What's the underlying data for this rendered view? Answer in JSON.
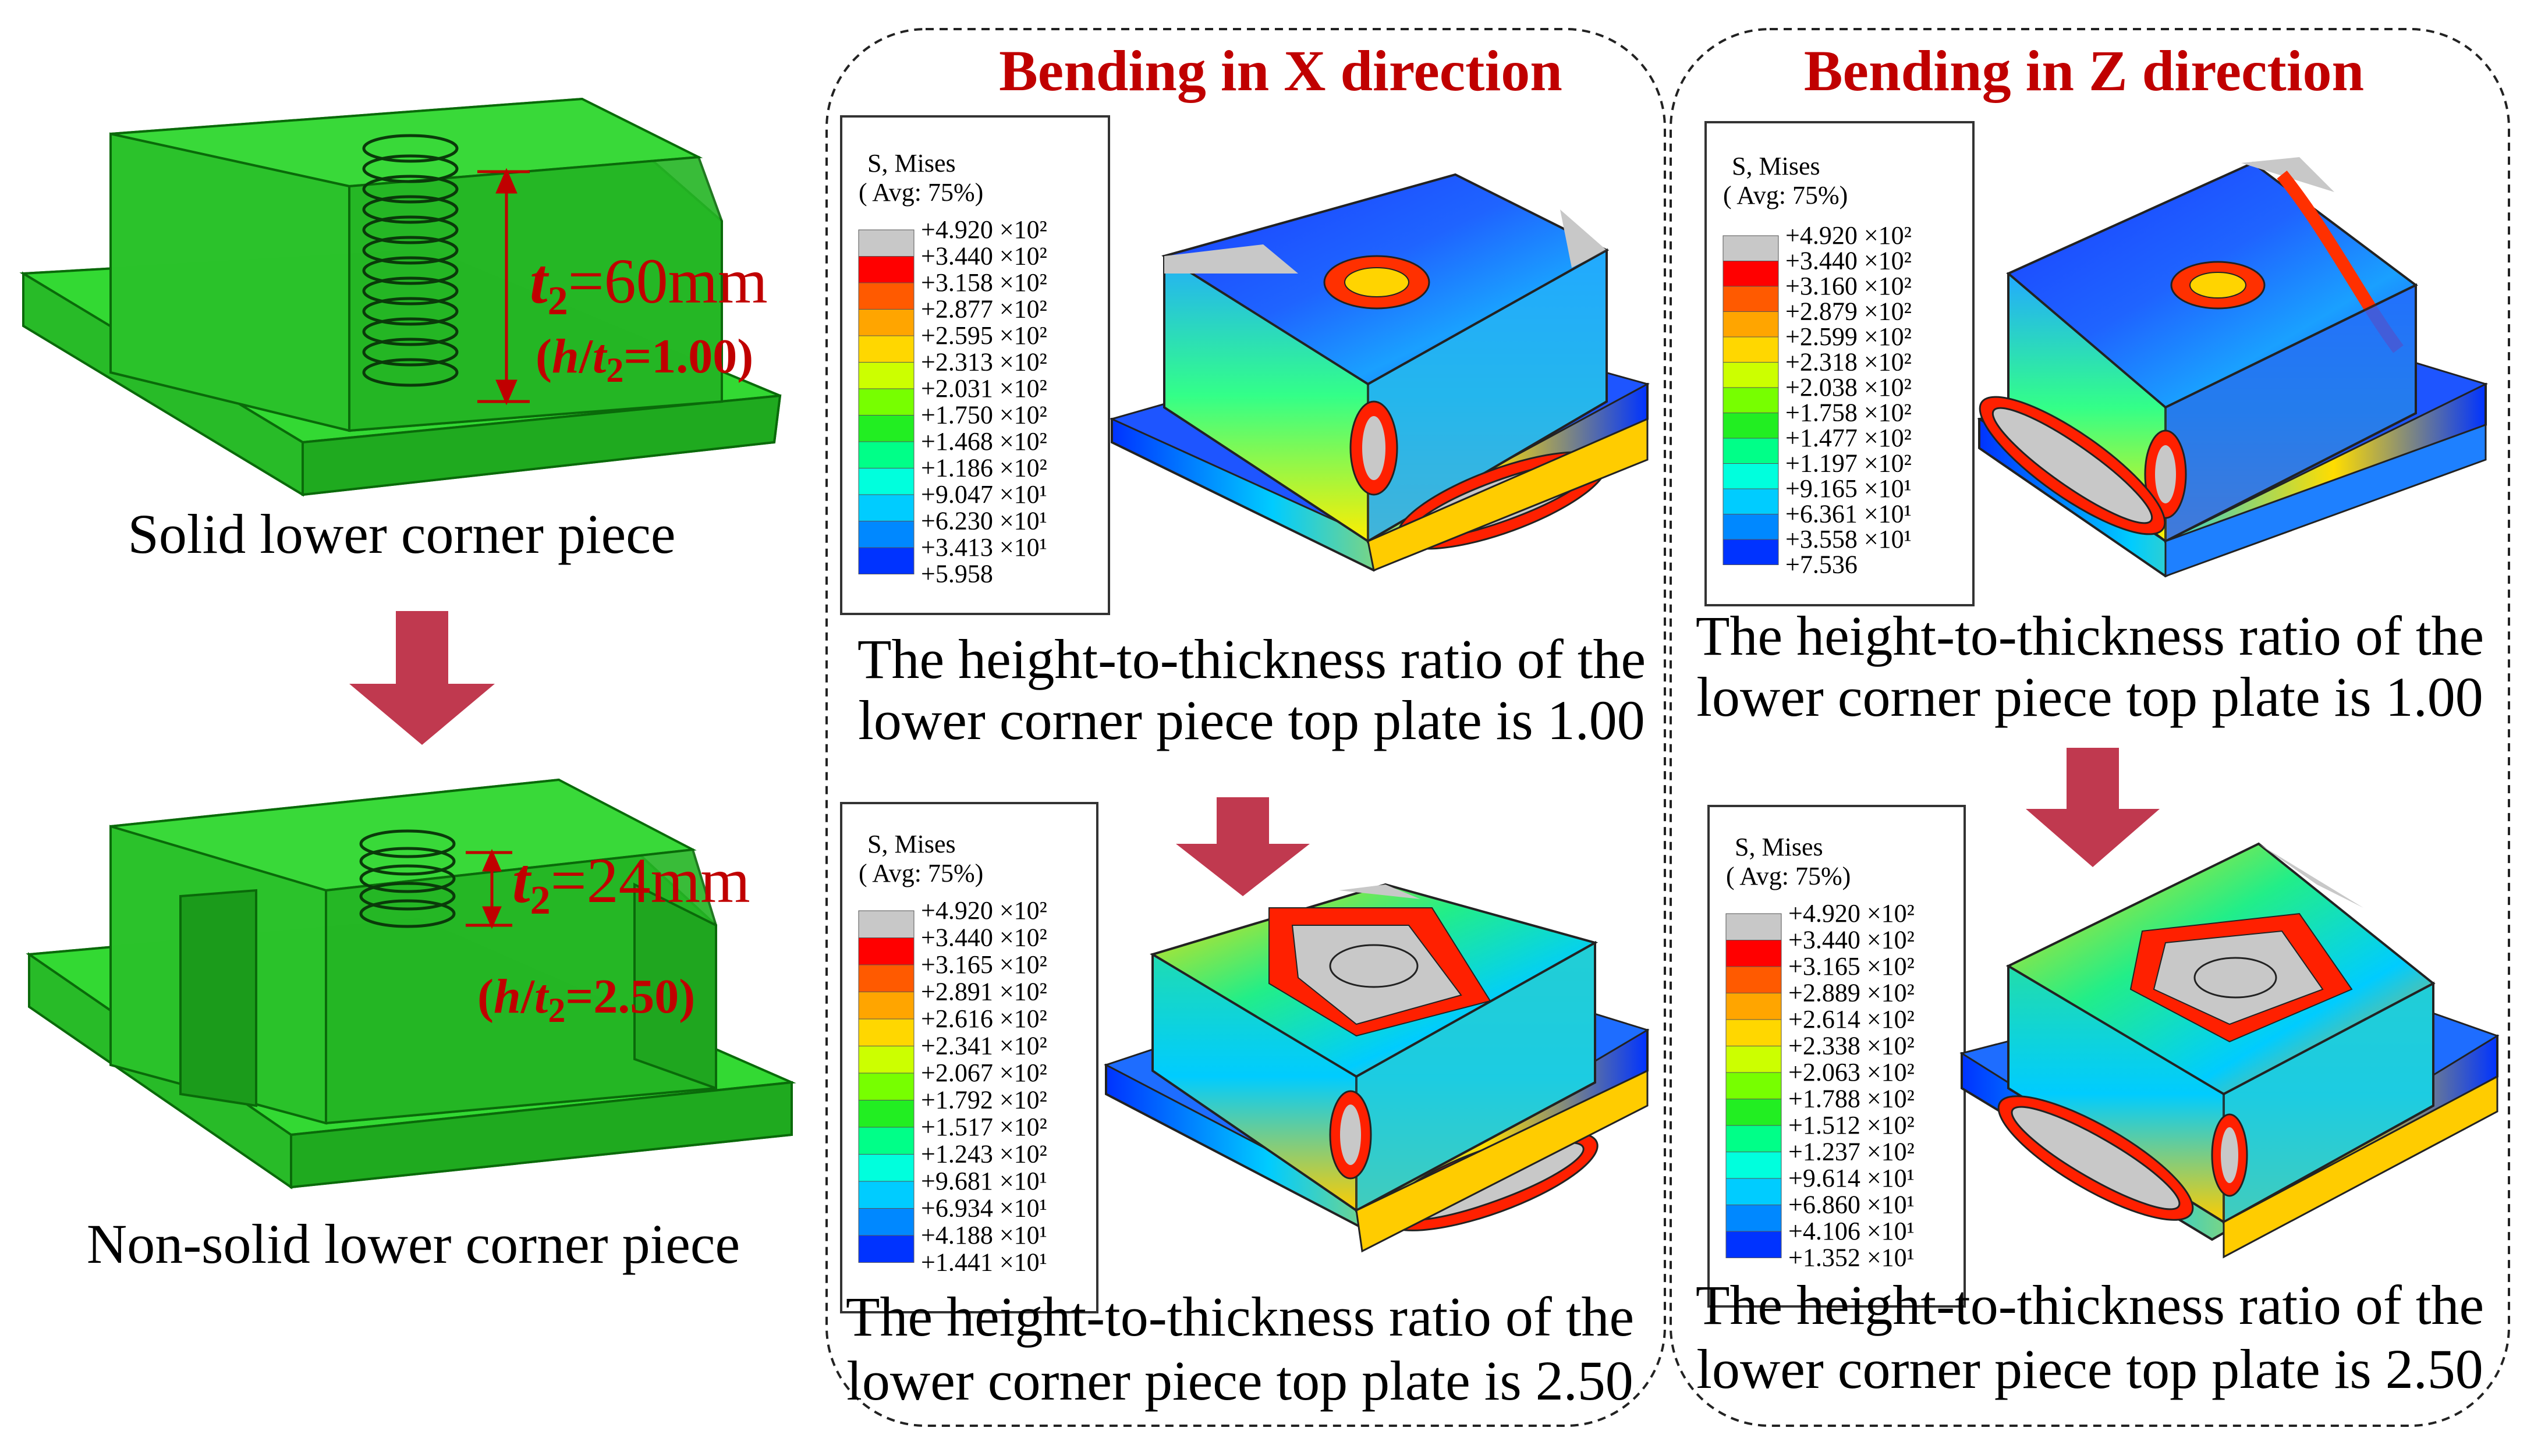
{
  "left": {
    "solid_caption": "Solid lower corner piece",
    "nonsolid_caption": "Non-solid lower corner piece",
    "solid_dim": {
      "t": "t",
      "sub": "2",
      "value": "=60mm",
      "ratio_prefix": "(",
      "h": "h",
      "slash": "/",
      "t2": "t",
      "sub2": "2",
      "ratio_value": "=1.00)"
    },
    "nonsolid_dim": {
      "t": "t",
      "sub": "2",
      "value": "=24mm",
      "ratio_prefix": "(",
      "h": "h",
      "slash": "/",
      "t2": "t",
      "sub2": "2",
      "ratio_value": "=2.50)"
    }
  },
  "panels": {
    "x": {
      "title": "Bending in X direction",
      "top": {
        "legend": {
          "header1": "S, Mises",
          "header2": "( Avg: 75%)",
          "values": [
            "+4.920 ×10²",
            "+3.440 ×10²",
            "+3.158 ×10²",
            "+2.877 ×10²",
            "+2.595 ×10²",
            "+2.313 ×10²",
            "+2.031 ×10²",
            "+1.750 ×10²",
            "+1.468 ×10²",
            "+1.186 ×10²",
            "+9.047 ×10¹",
            "+6.230 ×10¹",
            "+3.413 ×10¹",
            "+5.958"
          ]
        },
        "caption1": "The height-to-thickness ratio of the",
        "caption2": "lower corner piece top plate is 1.00"
      },
      "bottom": {
        "legend": {
          "header1": "S, Mises",
          "header2": "( Avg: 75%)",
          "values": [
            "+4.920 ×10²",
            "+3.440 ×10²",
            "+3.165 ×10²",
            "+2.891 ×10²",
            "+2.616 ×10²",
            "+2.341 ×10²",
            "+2.067 ×10²",
            "+1.792 ×10²",
            "+1.517 ×10²",
            "+1.243 ×10²",
            "+9.681 ×10¹",
            "+6.934 ×10¹",
            "+4.188 ×10¹",
            "+1.441 ×10¹"
          ]
        },
        "caption1": "The height-to-thickness ratio of the",
        "caption2": "lower corner piece top plate is 2.50"
      }
    },
    "z": {
      "title": "Bending in Z direction",
      "top": {
        "legend": {
          "header1": "S, Mises",
          "header2": "( Avg: 75%)",
          "values": [
            "+4.920 ×10²",
            "+3.440 ×10²",
            "+3.160 ×10²",
            "+2.879 ×10²",
            "+2.599 ×10²",
            "+2.318 ×10²",
            "+2.038 ×10²",
            "+1.758 ×10²",
            "+1.477 ×10²",
            "+1.197 ×10²",
            "+9.165 ×10¹",
            "+6.361 ×10¹",
            "+3.558 ×10¹",
            "+7.536"
          ]
        },
        "caption1": "The height-to-thickness ratio of the",
        "caption2": "lower corner piece top plate is 1.00"
      },
      "bottom": {
        "legend": {
          "header1": "S, Mises",
          "header2": "( Avg: 75%)",
          "values": [
            "+4.920 ×10²",
            "+3.440 ×10²",
            "+3.165 ×10²",
            "+2.889 ×10²",
            "+2.614 ×10²",
            "+2.338 ×10²",
            "+2.063 ×10²",
            "+1.788 ×10²",
            "+1.512 ×10²",
            "+1.237 ×10²",
            "+9.614 ×10¹",
            "+6.860 ×10¹",
            "+4.106 ×10¹",
            "+1.352 ×10¹"
          ]
        },
        "caption1": "The height-to-thickness ratio of the",
        "caption2": "lower corner piece top plate is 2.50"
      }
    }
  },
  "colors": {
    "accent_red": "#c00000",
    "arrow": "#c0394f",
    "model_green": "#22c322",
    "legend_scale": [
      "#c8c8c8",
      "#ff0000",
      "#ff5a00",
      "#ffa500",
      "#ffd700",
      "#ccff00",
      "#77ff00",
      "#22ee22",
      "#00ff88",
      "#00ffdd",
      "#00ccff",
      "#0088ff",
      "#0033ff",
      "#0000cc"
    ]
  },
  "icons": {
    "flow_arrow": "down-arrow-icon"
  }
}
